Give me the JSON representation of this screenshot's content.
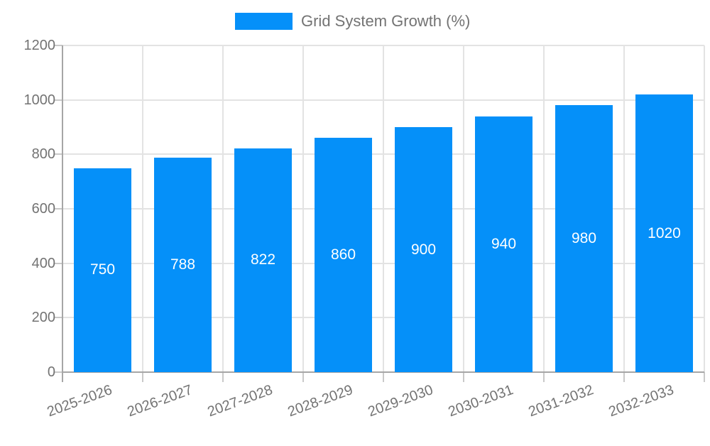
{
  "chart_data": {
    "type": "bar",
    "legend_label": "Grid System Growth (%)",
    "legend_position": "top",
    "categories": [
      "2025-2026",
      "2026-2027",
      "2027-2028",
      "2028-2029",
      "2029-2030",
      "2030-2031",
      "2031-2032",
      "2032-2033"
    ],
    "values": [
      750,
      788,
      822,
      860,
      900,
      940,
      980,
      1020
    ],
    "value_labels": [
      "750",
      "788",
      "822",
      "860",
      "900",
      "940",
      "980",
      "1020"
    ],
    "ylim": [
      0,
      1200
    ],
    "yticks": [
      0,
      200,
      400,
      600,
      800,
      1000,
      1200
    ],
    "grid": true,
    "colors": {
      "bar": "#0590f9",
      "value_label": "#ffffff",
      "axis_text": "#737373",
      "grid_line": "#e3e3e3",
      "axis_line": "#a6a6a6",
      "tick_mark": "#c9c9c9",
      "background": "#ffffff"
    }
  }
}
